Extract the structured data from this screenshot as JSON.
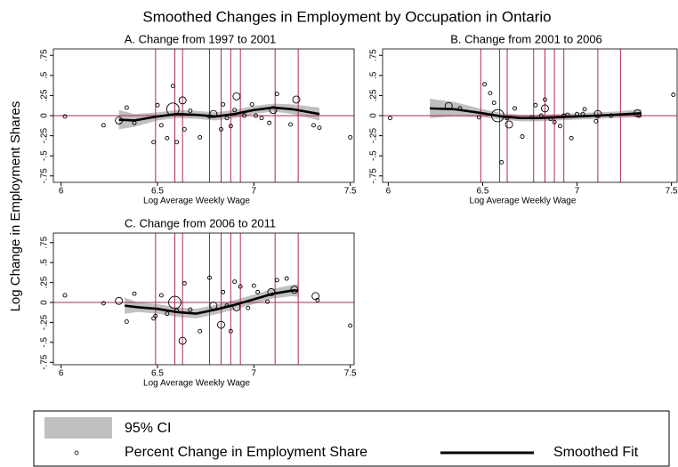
{
  "title": "Smoothed Changes in Employment by Occupation in Ontario",
  "y_label": "Log Change in Employment Shares",
  "legend": {
    "ci": "95% CI",
    "points": "Percent Change in Employment Share",
    "fit": "Smoothed Fit"
  },
  "chart_data": [
    {
      "type": "scatter",
      "title": "A. Change from 1997 to 2001",
      "x_label": "Log Average Weekly Wage",
      "xlim": [
        5.96,
        7.52
      ],
      "ylim": [
        -0.83,
        0.83
      ],
      "xticks": [
        6,
        6.5,
        7,
        7.5
      ],
      "yticks": [
        {
          "value": 0.75,
          "label": ".75"
        },
        {
          "value": 0.5,
          "label": ".5"
        },
        {
          "value": 0.25,
          "label": ".25"
        },
        0,
        {
          "value": -0.25,
          "label": "-.25"
        },
        {
          "value": -0.5,
          "label": "-.5"
        },
        {
          "value": -0.75,
          "label": "-.75"
        }
      ],
      "ref_color": "#b22a4e",
      "point_color": "#000000",
      "fit_color": "#000000",
      "ci_color": "#c0c0c0",
      "vlines": [
        6.49,
        6.59,
        6.63,
        6.77,
        6.83,
        6.88,
        6.93,
        7.11,
        7.23
      ],
      "points": {
        "x": [
          6.02,
          6.22,
          6.3,
          6.34,
          6.38,
          6.48,
          6.5,
          6.52,
          6.55,
          6.58,
          6.58,
          6.6,
          6.63,
          6.64,
          6.67,
          6.72,
          6.77,
          6.79,
          6.83,
          6.84,
          6.86,
          6.88,
          6.9,
          6.91,
          6.95,
          6.99,
          7.01,
          7.04,
          7.08,
          7.1,
          7.12,
          7.19,
          7.22,
          7.31,
          7.34,
          7.5
        ],
        "values": [
          -0.01,
          -0.12,
          -0.06,
          0.1,
          -0.09,
          -0.33,
          0.13,
          -0.12,
          -0.28,
          0.37,
          0.08,
          -0.33,
          0.19,
          -0.17,
          0.06,
          -0.27,
          -0.01,
          0.02,
          -0.17,
          0.14,
          -0.03,
          -0.13,
          0.07,
          0.24,
          0.0,
          0.14,
          0.0,
          -0.03,
          -0.09,
          0.07,
          0.27,
          -0.11,
          0.2,
          -0.12,
          -0.15,
          -0.27
        ],
        "sizes": [
          1,
          1,
          4,
          1,
          1,
          1,
          1,
          1,
          1,
          1,
          12,
          1,
          4,
          1,
          1,
          1,
          1,
          4,
          1,
          1,
          1,
          1,
          1,
          4,
          1,
          1,
          1,
          1,
          1,
          4,
          1,
          1,
          4,
          1,
          1,
          1
        ]
      },
      "fit": {
        "x": [
          6.3,
          6.38,
          6.5,
          6.6,
          6.7,
          6.8,
          6.9,
          7.0,
          7.1,
          7.2,
          7.34
        ],
        "values": [
          -0.05,
          -0.06,
          -0.01,
          0.02,
          0.01,
          -0.01,
          0.02,
          0.07,
          0.1,
          0.08,
          0.02
        ],
        "ci_lower": [
          -0.17,
          -0.14,
          -0.06,
          -0.03,
          -0.04,
          -0.06,
          -0.03,
          0.02,
          0.05,
          0.02,
          -0.06
        ],
        "ci_upper": [
          0.07,
          0.02,
          0.04,
          0.07,
          0.06,
          0.04,
          0.07,
          0.12,
          0.15,
          0.14,
          0.1
        ]
      }
    },
    {
      "type": "scatter",
      "title": "B. Change from 2001 to 2006",
      "x_label": "Log Average Weekly Wage",
      "xlim": [
        5.97,
        7.53
      ],
      "ylim": [
        -0.83,
        0.83
      ],
      "xticks": [
        6,
        6.5,
        7,
        7.5
      ],
      "yticks": [
        {
          "value": 0.75,
          "label": ".75"
        },
        {
          "value": 0.5,
          "label": ".5"
        },
        {
          "value": 0.25,
          "label": ".25"
        },
        0,
        {
          "value": -0.25,
          "label": "-.25"
        },
        {
          "value": -0.5,
          "label": "-.5"
        },
        {
          "value": -0.75,
          "label": "-.75"
        }
      ],
      "ref_color": "#b22a4e",
      "point_color": "#000000",
      "fit_color": "#000000",
      "ci_color": "#c0c0c0",
      "vlines": [
        6.49,
        6.59,
        6.63,
        6.77,
        6.83,
        6.88,
        6.93,
        7.11,
        7.23
      ],
      "points": {
        "x": [
          6.01,
          6.32,
          6.38,
          6.48,
          6.51,
          6.54,
          6.56,
          6.58,
          6.6,
          6.63,
          6.64,
          6.67,
          6.71,
          6.76,
          6.78,
          6.81,
          6.83,
          6.83,
          6.86,
          6.88,
          6.91,
          6.93,
          6.95,
          6.97,
          7.0,
          7.03,
          7.04,
          7.1,
          7.11,
          7.18,
          7.32,
          7.33,
          7.51
        ],
        "values": [
          -0.03,
          0.12,
          0.09,
          -0.02,
          0.39,
          0.28,
          0.16,
          0.0,
          -0.58,
          -0.03,
          -0.11,
          0.09,
          -0.26,
          -0.02,
          0.13,
          0.0,
          0.2,
          0.09,
          -0.04,
          -0.08,
          -0.13,
          0.0,
          0.01,
          -0.28,
          0.02,
          0.02,
          0.08,
          -0.07,
          0.02,
          0.0,
          0.03,
          0.0,
          0.26
        ],
        "sizes": [
          1,
          4,
          1,
          1,
          1,
          1,
          1,
          12,
          1,
          1,
          4,
          1,
          1,
          1,
          1,
          1,
          1,
          4,
          1,
          1,
          1,
          1,
          1,
          1,
          1,
          1,
          1,
          1,
          4,
          1,
          4,
          1,
          1
        ]
      },
      "fit": {
        "x": [
          6.22,
          6.35,
          6.5,
          6.6,
          6.7,
          6.8,
          6.9,
          7.0,
          7.1,
          7.2,
          7.34
        ],
        "values": [
          0.09,
          0.08,
          0.03,
          -0.01,
          -0.03,
          -0.03,
          -0.02,
          -0.01,
          0.0,
          0.01,
          0.03
        ],
        "ci_lower": [
          -0.03,
          -0.01,
          -0.02,
          -0.05,
          -0.07,
          -0.07,
          -0.06,
          -0.05,
          -0.04,
          -0.03,
          -0.02
        ],
        "ci_upper": [
          0.21,
          0.17,
          0.08,
          0.03,
          0.01,
          0.01,
          0.02,
          0.03,
          0.04,
          0.05,
          0.08
        ]
      }
    },
    {
      "type": "scatter",
      "title": "C. Change from 2006 to 2011",
      "x_label": "Log Average Weekly Wage",
      "xlim": [
        5.96,
        7.52
      ],
      "ylim": [
        -0.78,
        0.87
      ],
      "xticks": [
        6,
        6.5,
        7,
        7.5
      ],
      "yticks": [
        {
          "value": 0.75,
          "label": ".75"
        },
        {
          "value": 0.5,
          "label": ".5"
        },
        {
          "value": 0.25,
          "label": ".25"
        },
        0,
        {
          "value": -0.25,
          "label": "-.25"
        },
        {
          "value": -0.5,
          "label": "-.5"
        },
        {
          "value": -0.75,
          "label": "-.75"
        }
      ],
      "ref_color": "#b22a4e",
      "point_color": "#000000",
      "fit_color": "#000000",
      "ci_color": "#c0c0c0",
      "vlines": [
        6.49,
        6.59,
        6.63,
        6.77,
        6.83,
        6.88,
        6.93,
        7.11,
        7.23
      ],
      "points": {
        "x": [
          6.02,
          6.22,
          6.3,
          6.34,
          6.38,
          6.48,
          6.49,
          6.52,
          6.55,
          6.59,
          6.6,
          6.63,
          6.64,
          6.67,
          6.72,
          6.77,
          6.79,
          6.83,
          6.84,
          6.86,
          6.88,
          6.9,
          6.91,
          6.93,
          6.97,
          7.0,
          7.02,
          7.07,
          7.09,
          7.12,
          7.17,
          7.21,
          7.32,
          7.33,
          7.5
        ],
        "values": [
          0.09,
          -0.01,
          0.02,
          -0.24,
          0.11,
          -0.2,
          -0.17,
          0.09,
          -0.14,
          0.0,
          -0.1,
          -0.48,
          0.24,
          -0.09,
          -0.36,
          0.31,
          -0.04,
          -0.28,
          0.13,
          -0.04,
          -0.36,
          0.26,
          -0.06,
          0.2,
          -0.07,
          0.21,
          0.13,
          0.01,
          0.13,
          0.28,
          0.3,
          0.16,
          0.08,
          0.03,
          -0.29
        ],
        "sizes": [
          1,
          1,
          4,
          1,
          1,
          1,
          1,
          1,
          1,
          12,
          1,
          4,
          1,
          1,
          1,
          1,
          4,
          4,
          1,
          1,
          1,
          1,
          4,
          1,
          1,
          1,
          1,
          1,
          4,
          1,
          1,
          4,
          4,
          1,
          1
        ]
      },
      "fit": {
        "x": [
          6.33,
          6.4,
          6.5,
          6.6,
          6.7,
          6.8,
          6.9,
          7.0,
          7.1,
          7.2,
          7.23
        ],
        "values": [
          -0.04,
          -0.06,
          -0.08,
          -0.12,
          -0.14,
          -0.09,
          -0.03,
          0.04,
          0.11,
          0.15,
          0.15
        ],
        "ci_lower": [
          -0.14,
          -0.12,
          -0.14,
          -0.18,
          -0.2,
          -0.15,
          -0.09,
          -0.02,
          0.05,
          0.08,
          0.07
        ],
        "ci_upper": [
          0.06,
          0.0,
          -0.02,
          -0.06,
          -0.08,
          -0.03,
          0.03,
          0.1,
          0.17,
          0.22,
          0.23
        ]
      }
    }
  ]
}
